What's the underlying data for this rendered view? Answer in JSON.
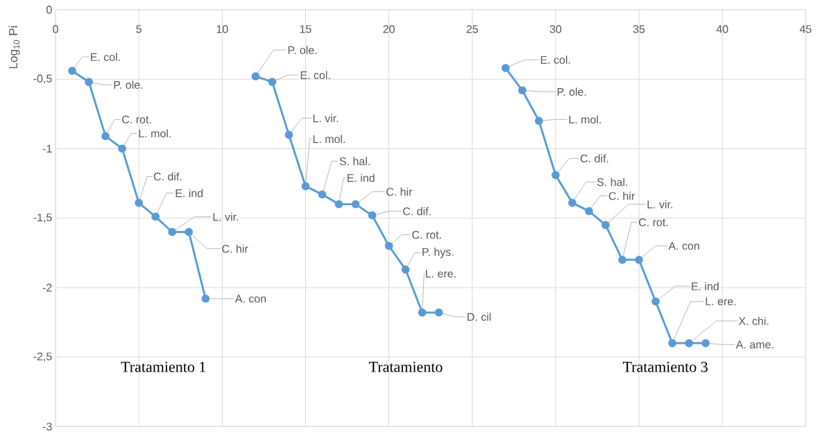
{
  "chart_data": {
    "type": "line",
    "ylabel": "Log$_{10}$ Pi",
    "xlim": [
      0,
      45
    ],
    "xticks": [
      0,
      5,
      10,
      15,
      20,
      25,
      30,
      35,
      40,
      45
    ],
    "ylim": [
      -3,
      0
    ],
    "yticks": [
      -3,
      {
        "value": -2.5,
        "label": "-2,5"
      },
      -2,
      {
        "value": -1.5,
        "label": "-1,5"
      },
      -1,
      {
        "value": -0.5,
        "label": "-0,5"
      },
      0
    ],
    "grid": true,
    "marker": "circle",
    "line_style": "solid",
    "series": [
      {
        "color": "#5b9bd5",
        "x": [
          1,
          2,
          3,
          4,
          5,
          6,
          7,
          8,
          9
        ],
        "values": [
          -0.44,
          -0.52,
          -0.91,
          -1.0,
          -1.39,
          -1.49,
          -1.6,
          -1.6,
          -2.08
        ]
      },
      {
        "color": "#5b9bd5",
        "x": [
          12,
          13,
          14,
          15,
          16,
          17,
          18,
          19,
          20,
          21,
          22,
          23
        ],
        "values": [
          -0.48,
          -0.52,
          -0.9,
          -1.27,
          -1.33,
          -1.4,
          -1.4,
          -1.48,
          -1.7,
          -1.87,
          -2.18,
          -2.18
        ]
      },
      {
        "color": "#5b9bd5",
        "x": [
          27,
          28,
          29,
          30,
          31,
          32,
          33,
          34,
          35,
          36,
          37,
          38,
          39
        ],
        "values": [
          -0.42,
          -0.58,
          -0.8,
          -1.19,
          -1.39,
          -1.45,
          -1.55,
          -1.8,
          -1.8,
          -2.1,
          -2.4,
          -2.4,
          -2.4
        ]
      }
    ],
    "annotations": [
      {
        "text": "E. col.",
        "x": 1,
        "y": -0.44
      },
      {
        "text": "P. ole.",
        "x": 2,
        "y": -0.52
      },
      {
        "text": "C. rot.",
        "x": 3,
        "y": -0.91
      },
      {
        "text": "L. mol.",
        "x": 4,
        "y": -1.0
      },
      {
        "text": "C. dif.",
        "x": 5,
        "y": -1.39
      },
      {
        "text": "E. ind",
        "x": 6,
        "y": -1.49
      },
      {
        "text": "L. vir.",
        "x": 7,
        "y": -1.6
      },
      {
        "text": "C. hir",
        "x": 8,
        "y": -1.6
      },
      {
        "text": "A. con",
        "x": 9,
        "y": -2.08
      },
      {
        "text": "P. ole.",
        "x": 12,
        "y": -0.48
      },
      {
        "text": "E. col.",
        "x": 13,
        "y": -0.52
      },
      {
        "text": "L. vir.",
        "x": 14,
        "y": -0.9
      },
      {
        "text": "L. mol.",
        "x": 15,
        "y": -1.27
      },
      {
        "text": "S. hal.",
        "x": 16,
        "y": -1.33
      },
      {
        "text": "E. ind",
        "x": 17,
        "y": -1.4
      },
      {
        "text": "C. hir",
        "x": 18,
        "y": -1.4
      },
      {
        "text": "C. dif.",
        "x": 19,
        "y": -1.48
      },
      {
        "text": "C. rot.",
        "x": 20,
        "y": -1.7
      },
      {
        "text": "P. hys.",
        "x": 21,
        "y": -1.87
      },
      {
        "text": "L. ere.",
        "x": 22,
        "y": -2.18
      },
      {
        "text": "D. cil",
        "x": 23,
        "y": -2.18
      },
      {
        "text": "E. col.",
        "x": 27,
        "y": -0.42
      },
      {
        "text": "P. ole.",
        "x": 28,
        "y": -0.58
      },
      {
        "text": "L. mol.",
        "x": 29,
        "y": -0.8
      },
      {
        "text": "C. dif.",
        "x": 30,
        "y": -1.19
      },
      {
        "text": "S. hal.",
        "x": 31,
        "y": -1.39
      },
      {
        "text": "C. hir",
        "x": 32,
        "y": -1.45
      },
      {
        "text": "L. vir.",
        "x": 33,
        "y": -1.55
      },
      {
        "text": "C. rot.",
        "x": 34,
        "y": -1.8
      },
      {
        "text": "A. con",
        "x": 35,
        "y": -1.8
      },
      {
        "text": "E. ind",
        "x": 36,
        "y": -2.1
      },
      {
        "text": "L. ere.",
        "x": 37,
        "y": -2.4
      },
      {
        "text": "X. chi.",
        "x": 38,
        "y": -2.4
      },
      {
        "text": "A. ame.",
        "x": 39,
        "y": -2.4
      },
      "Tratamiento 1",
      "Tratamiento",
      "Tratamiento 3"
    ]
  }
}
